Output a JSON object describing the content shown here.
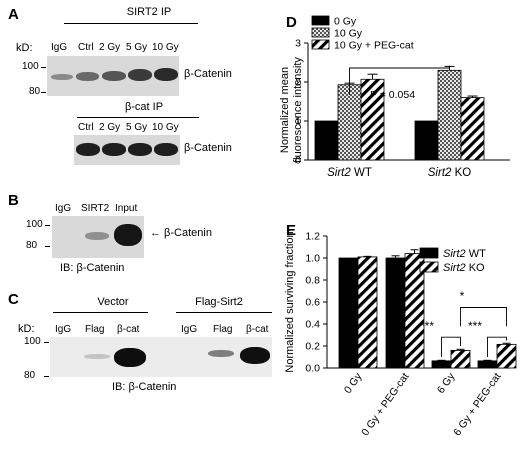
{
  "panel_a": {
    "label": "A",
    "kd_label": "kD:",
    "ip_top": "SIRT2 IP",
    "ip_bottom": "β-cat IP",
    "lanes_top": [
      "IgG",
      "Ctrl",
      "2 Gy",
      "5 Gy",
      "10 Gy"
    ],
    "lanes_bottom": [
      "Ctrl",
      "2 Gy",
      "5 Gy",
      "10 Gy"
    ],
    "mw_markers": [
      "100",
      "80"
    ],
    "blot_label_top": "β-Catenin",
    "blot_label_bottom": "β-Catenin"
  },
  "panel_b": {
    "label": "B",
    "lanes": [
      "IgG",
      "SIRT2",
      "Input"
    ],
    "mw_markers": [
      "100",
      "80"
    ],
    "arrow_label": "← β-Catenin",
    "ib_label": "IB: β-Catenin"
  },
  "panel_c": {
    "label": "C",
    "kd_label": "kD:",
    "group_vector": "Vector",
    "group_flag": "Flag-Sirt2",
    "lanes": [
      "IgG",
      "Flag",
      "β-cat",
      "IgG",
      "Flag",
      "β-cat"
    ],
    "mw_markers": [
      "100",
      "80"
    ],
    "ib_label": "IB: β-Catenin"
  },
  "panel_d": {
    "label": "D",
    "pvalue": "P = 0.054"
  },
  "panel_e": {
    "label": "E",
    "sig_marks": [
      "***",
      "***",
      "*"
    ]
  },
  "chart_data": [
    {
      "type": "bar",
      "panel": "D",
      "ylabel": "Normalized mean fluorescence intensity",
      "ylim": [
        0,
        3
      ],
      "yticks": [
        "0",
        "1",
        "2",
        "3"
      ],
      "categories": [
        "Sirt2 WT",
        "Sirt2 KO"
      ],
      "series": [
        {
          "name": "0 Gy",
          "values": [
            1.0,
            1.0
          ],
          "errors": [
            0,
            0
          ],
          "color": "#000000",
          "pattern": "solid"
        },
        {
          "name": "10 Gy",
          "values": [
            1.93,
            2.3
          ],
          "errors": [
            0.04,
            0.1
          ],
          "color": "#9a9a9a",
          "pattern": "checker"
        },
        {
          "name": "10 Gy + PEG-cat",
          "values": [
            2.07,
            1.6
          ],
          "errors": [
            0.13,
            0.04
          ],
          "color": "#ffffff",
          "pattern": "diagonal"
        }
      ],
      "legend": "top-left"
    },
    {
      "type": "bar",
      "panel": "E",
      "ylabel": "Normalized surviving fraction",
      "ylim": [
        0,
        1.2
      ],
      "yticks": [
        "0.0",
        "0.2",
        "0.4",
        "0.6",
        "0.8",
        "1.0",
        "1.2"
      ],
      "categories": [
        "0 Gy",
        "0 Gy + PEG-cat",
        "6 Gy",
        "6 Gy + PEG-cat"
      ],
      "series": [
        {
          "name": "Sirt2 WT",
          "values": [
            1.0,
            1.0,
            0.065,
            0.065
          ],
          "errors": [
            0,
            0.02,
            0.005,
            0.005
          ],
          "color": "#000000",
          "pattern": "solid"
        },
        {
          "name": "Sirt2 KO",
          "values": [
            1.01,
            1.04,
            0.16,
            0.215
          ],
          "errors": [
            0.005,
            0.035,
            0.01,
            0.01
          ],
          "color": "#ffffff",
          "pattern": "diagonal"
        }
      ],
      "legend": "top-right"
    }
  ]
}
